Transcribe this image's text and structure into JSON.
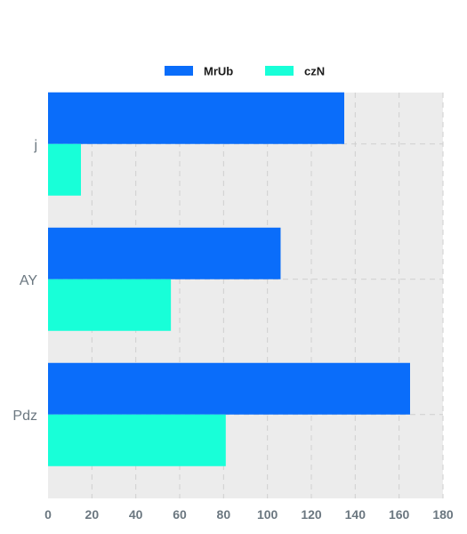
{
  "chart_data": {
    "type": "bar",
    "orientation": "horizontal",
    "categories": [
      "j",
      "AY",
      "Pdz"
    ],
    "series": [
      {
        "name": "MrUb",
        "values": [
          135,
          106,
          165
        ],
        "color": "#0a6dfa"
      },
      {
        "name": "czN",
        "values": [
          15,
          56,
          81
        ],
        "color": "#18ffd8"
      }
    ],
    "x_ticks": [
      0,
      20,
      40,
      60,
      80,
      100,
      120,
      140,
      160,
      180
    ],
    "xlim": [
      0,
      180
    ],
    "grid": true,
    "legend_position": "top-center",
    "plot_background": "#ececec",
    "grid_color": "#cfcfcf",
    "tick_color": "#6b7780"
  }
}
